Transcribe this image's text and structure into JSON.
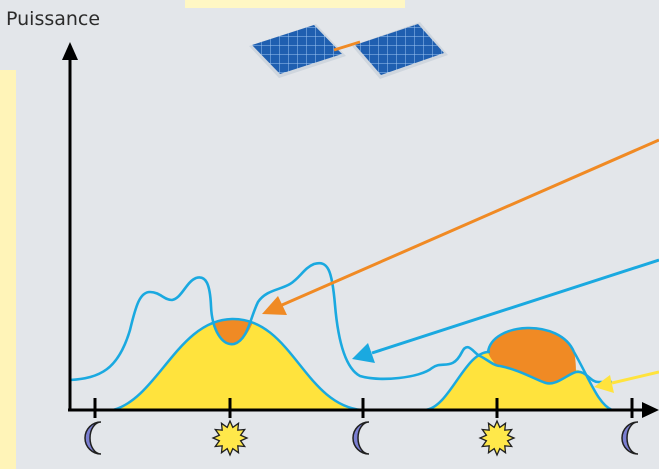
{
  "axis": {
    "y_label": "Puissance"
  },
  "colors": {
    "background": "#e3e6ea",
    "left_strip": "#fff4b8",
    "top_strip": "#fff7c4",
    "consumption_line": "#1aa9e0",
    "production_fill": "#ffe33d",
    "self_consumption_fill": "#f08a24",
    "orange_arrow": "#f08a24",
    "blue_arrow": "#1aa9e0",
    "yellow_arrow": "#ffe33d",
    "axis": "#000000",
    "moon": "#7b7fd1",
    "sun": "#ffe84a",
    "panel": "#1f5fb0"
  },
  "icons": {
    "solar_panels": "solar-panel-icon",
    "night": "moon-icon",
    "day": "sun-icon"
  },
  "timeline": [
    "night",
    "day",
    "night",
    "day",
    "night"
  ]
}
